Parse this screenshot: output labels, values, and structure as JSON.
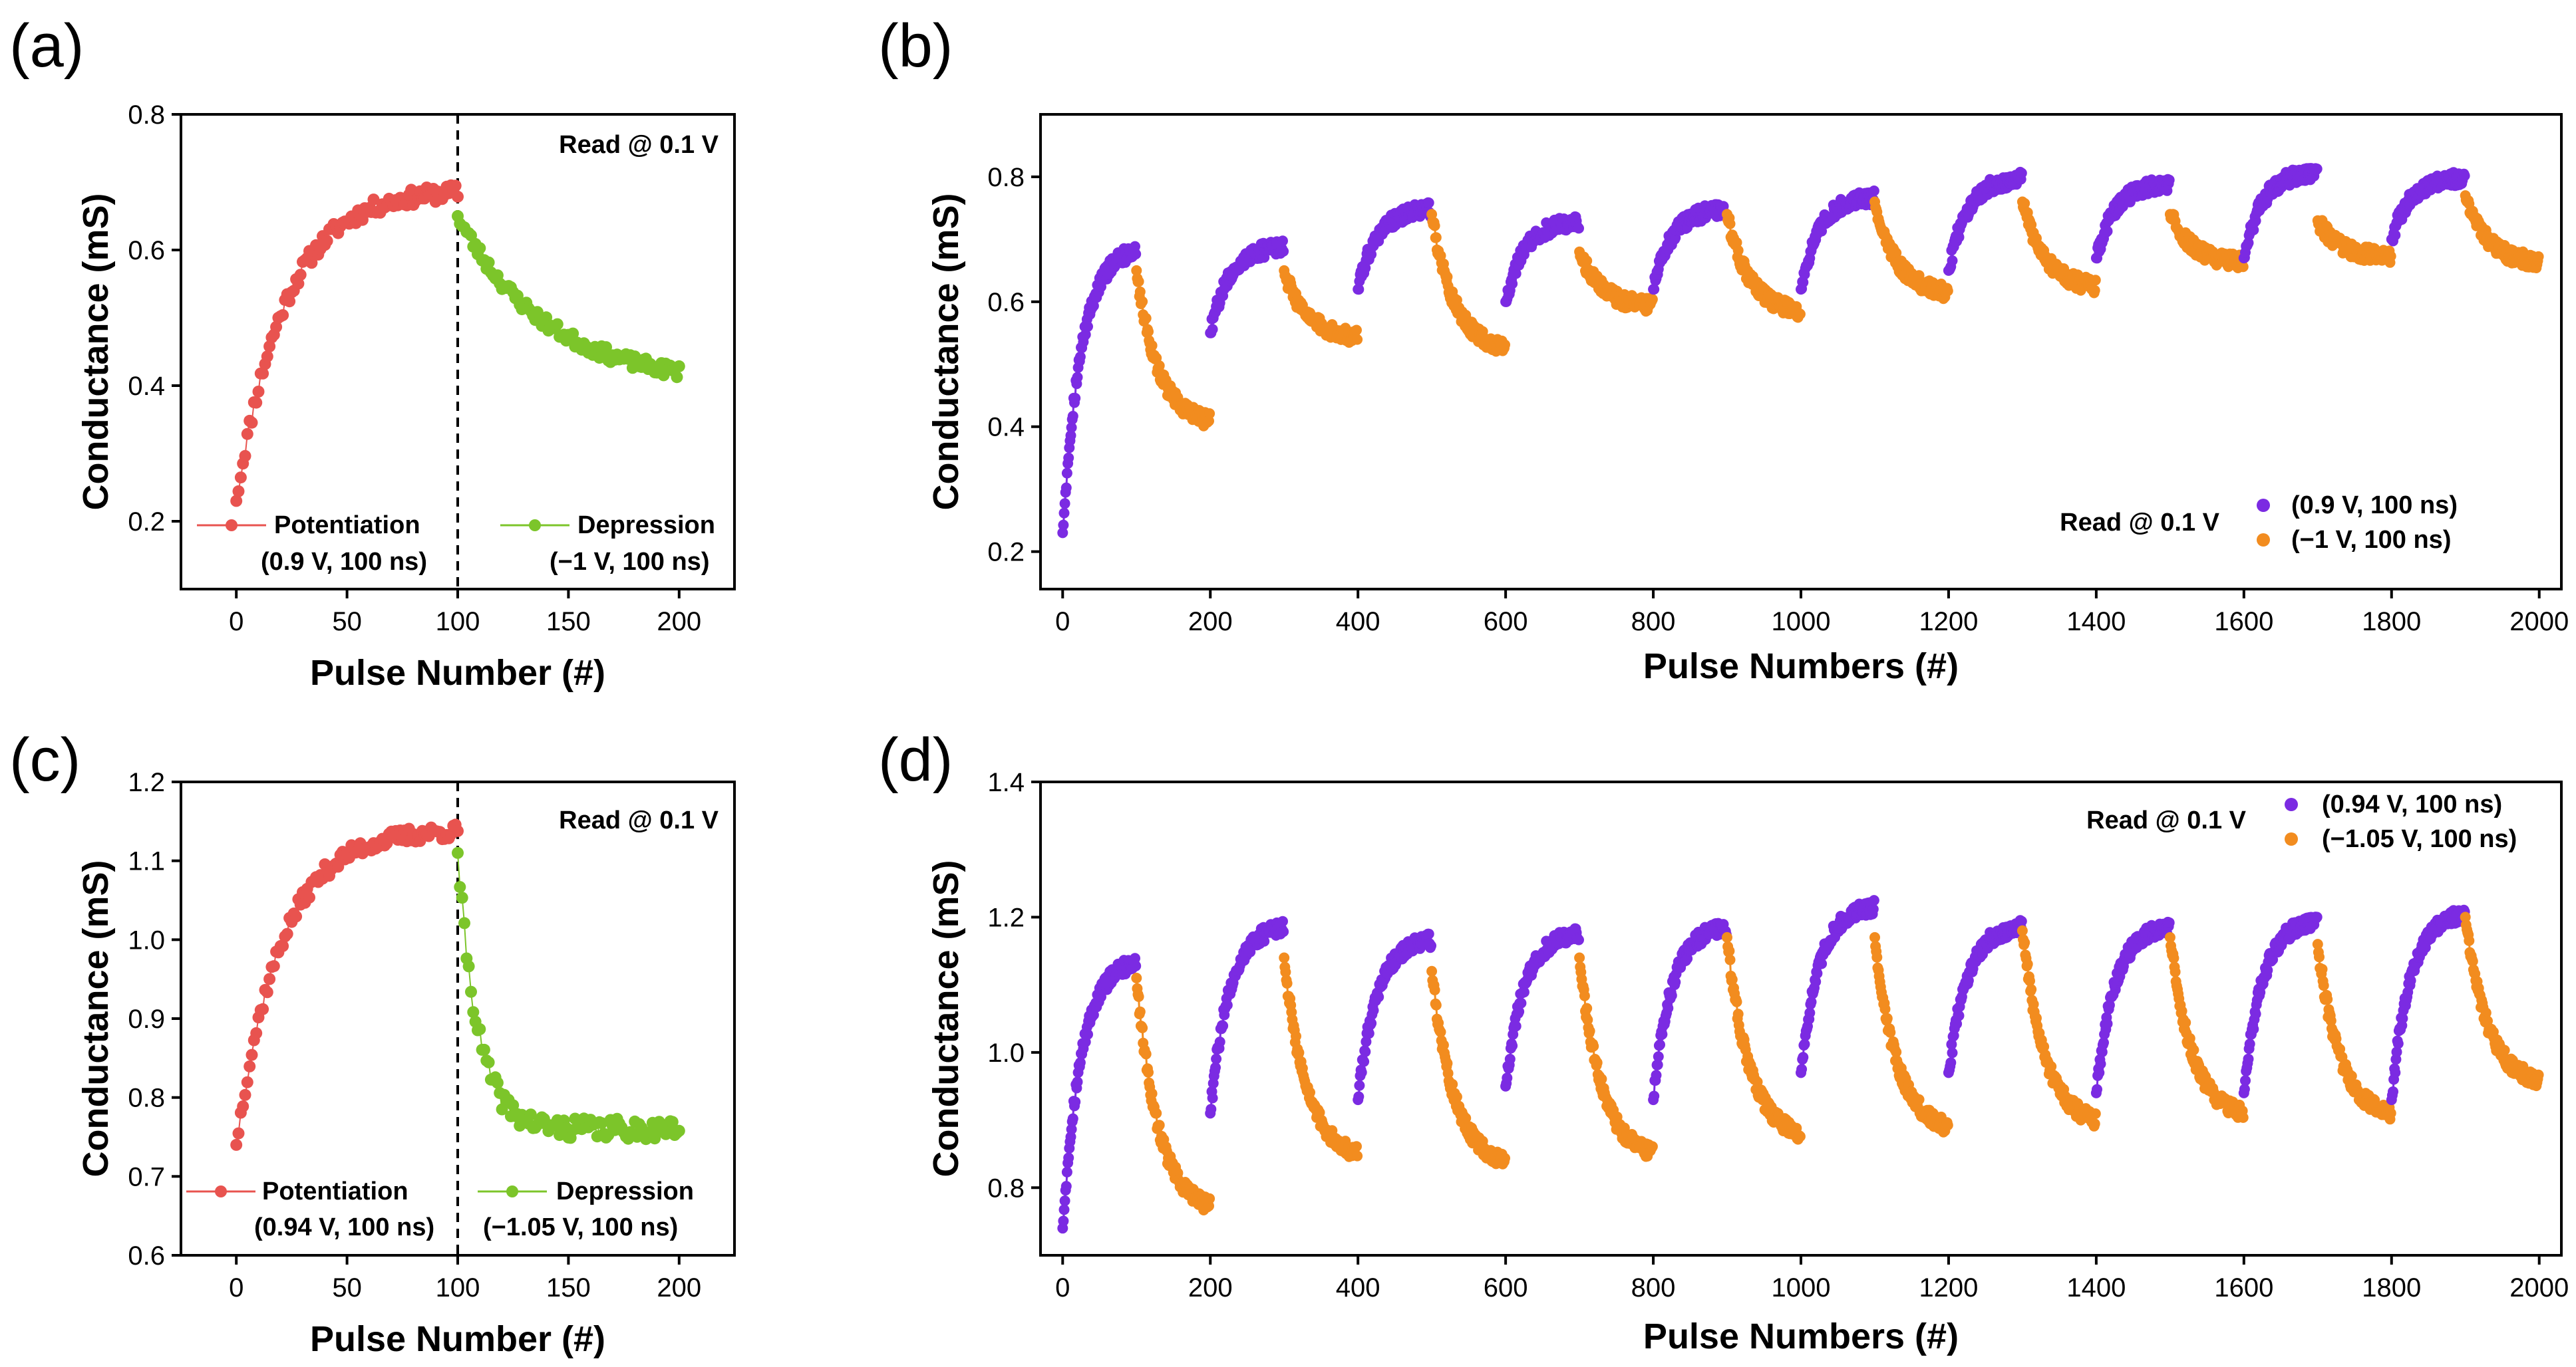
{
  "colors": {
    "potentiation": "#e8534f",
    "depression": "#7cc52a",
    "pulse_up": "#7b2be2",
    "pulse_down": "#f28c1f"
  },
  "chart_data": [
    {
      "panel": "(a)",
      "type": "scatter",
      "xlabel": "Pulse Number (#)",
      "ylabel": "Conductance (mS)",
      "xlim": [
        -25,
        225
      ],
      "ylim": [
        0.1,
        0.8
      ],
      "xticks": [
        "0",
        "50",
        "100",
        "150",
        "200"
      ],
      "yticks": [
        "0.2",
        "0.4",
        "0.6",
        "0.8"
      ],
      "annotation": "Read @ 0.1 V",
      "divider_x": 100,
      "series": [
        {
          "name": "Potentiation",
          "label_line2": "(0.9 V, 100 ns)",
          "color": "#e8534f",
          "model": {
            "start_x": 0,
            "end_x": 100,
            "y0": 0.23,
            "y1": 0.69,
            "tau": 22,
            "noise": 0.012,
            "seed": 11
          }
        },
        {
          "name": "Depression",
          "label_line2": "(−1 V, 100 ns)",
          "color": "#7cc52a",
          "model": {
            "start_x": 100,
            "end_x": 200,
            "y0": 0.65,
            "y1": 0.4,
            "tau": 40,
            "noise": 0.01,
            "seed": 23
          }
        }
      ]
    },
    {
      "panel": "(b)",
      "type": "scatter",
      "xlabel": "Pulse Numbers (#)",
      "ylabel": "Conductance (mS)",
      "xlim": [
        -30,
        2030
      ],
      "ylim": [
        0.14,
        0.9
      ],
      "xticks": [
        "0",
        "200",
        "400",
        "600",
        "800",
        "1000",
        "1200",
        "1400",
        "1600",
        "1800",
        "2000"
      ],
      "yticks": [
        "0.2",
        "0.4",
        "0.6",
        "0.8"
      ],
      "annotation": "Read @ 0.1 V",
      "legend": [
        "(0.9 V, 100 ns)",
        "(−1 V, 100 ns)"
      ],
      "cycles": [
        {
          "up": [
            0.23,
            0.69
          ],
          "down": [
            0.65,
            0.4
          ]
        },
        {
          "up": [
            0.55,
            0.69
          ],
          "down": [
            0.65,
            0.54
          ]
        },
        {
          "up": [
            0.62,
            0.75
          ],
          "down": [
            0.74,
            0.52
          ]
        },
        {
          "up": [
            0.6,
            0.73
          ],
          "down": [
            0.68,
            0.59
          ]
        },
        {
          "up": [
            0.62,
            0.75
          ],
          "down": [
            0.74,
            0.58
          ]
        },
        {
          "up": [
            0.62,
            0.77
          ],
          "down": [
            0.76,
            0.61
          ]
        },
        {
          "up": [
            0.65,
            0.8
          ],
          "down": [
            0.76,
            0.62
          ]
        },
        {
          "up": [
            0.67,
            0.79
          ],
          "down": [
            0.74,
            0.66
          ]
        },
        {
          "up": [
            0.67,
            0.81
          ],
          "down": [
            0.73,
            0.67
          ]
        },
        {
          "up": [
            0.7,
            0.8
          ],
          "down": [
            0.77,
            0.66
          ]
        }
      ]
    },
    {
      "panel": "(c)",
      "type": "scatter",
      "xlabel": "Pulse Number (#)",
      "ylabel": "Conductance (mS)",
      "xlim": [
        -25,
        225
      ],
      "ylim": [
        0.6,
        1.2
      ],
      "xticks": [
        "0",
        "50",
        "100",
        "150",
        "200"
      ],
      "yticks": [
        "0.6",
        "0.7",
        "0.8",
        "0.9",
        "1.0",
        "1.1",
        "1.2"
      ],
      "annotation": "Read @ 0.1 V",
      "divider_x": 100,
      "series": [
        {
          "name": "Potentiation",
          "label_line2": "(0.94 V, 100 ns)",
          "color": "#e8534f",
          "model": {
            "start_x": 0,
            "end_x": 100,
            "y0": 0.74,
            "y1": 1.14,
            "tau": 20,
            "noise": 0.01,
            "seed": 37
          }
        },
        {
          "name": "Depression",
          "label_line2": "(−1.05 V, 100 ns)",
          "color": "#7cc52a",
          "model": {
            "start_x": 100,
            "end_x": 200,
            "y0": 1.11,
            "y1": 0.76,
            "tau": 9,
            "noise": 0.013,
            "seed": 41
          }
        }
      ]
    },
    {
      "panel": "(d)",
      "type": "scatter",
      "xlabel": "Pulse Numbers (#)",
      "ylabel": "Conductance (mS)",
      "xlim": [
        -30,
        2030
      ],
      "ylim": [
        0.7,
        1.4
      ],
      "xticks": [
        "0",
        "200",
        "400",
        "600",
        "800",
        "1000",
        "1200",
        "1400",
        "1600",
        "1800",
        "2000"
      ],
      "yticks": [
        "0.8",
        "1.0",
        "1.2",
        "1.4"
      ],
      "annotation": "Read @ 0.1 V",
      "legend": [
        "(0.94 V, 100 ns)",
        "(−1.05 V, 100 ns)"
      ],
      "cycles": [
        {
          "up": [
            0.74,
            1.14
          ],
          "down": [
            1.11,
            0.76
          ]
        },
        {
          "up": [
            0.91,
            1.19
          ],
          "down": [
            1.14,
            0.84
          ]
        },
        {
          "up": [
            0.93,
            1.17
          ],
          "down": [
            1.12,
            0.83
          ]
        },
        {
          "up": [
            0.95,
            1.18
          ],
          "down": [
            1.14,
            0.84
          ]
        },
        {
          "up": [
            0.93,
            1.19
          ],
          "down": [
            1.17,
            0.87
          ]
        },
        {
          "up": [
            0.97,
            1.22
          ],
          "down": [
            1.17,
            0.88
          ]
        },
        {
          "up": [
            0.97,
            1.19
          ],
          "down": [
            1.18,
            0.89
          ]
        },
        {
          "up": [
            0.94,
            1.19
          ],
          "down": [
            1.17,
            0.9
          ]
        },
        {
          "up": [
            0.94,
            1.2
          ],
          "down": [
            1.16,
            0.9
          ]
        },
        {
          "up": [
            0.93,
            1.21
          ],
          "down": [
            1.2,
            0.95
          ]
        }
      ]
    }
  ]
}
